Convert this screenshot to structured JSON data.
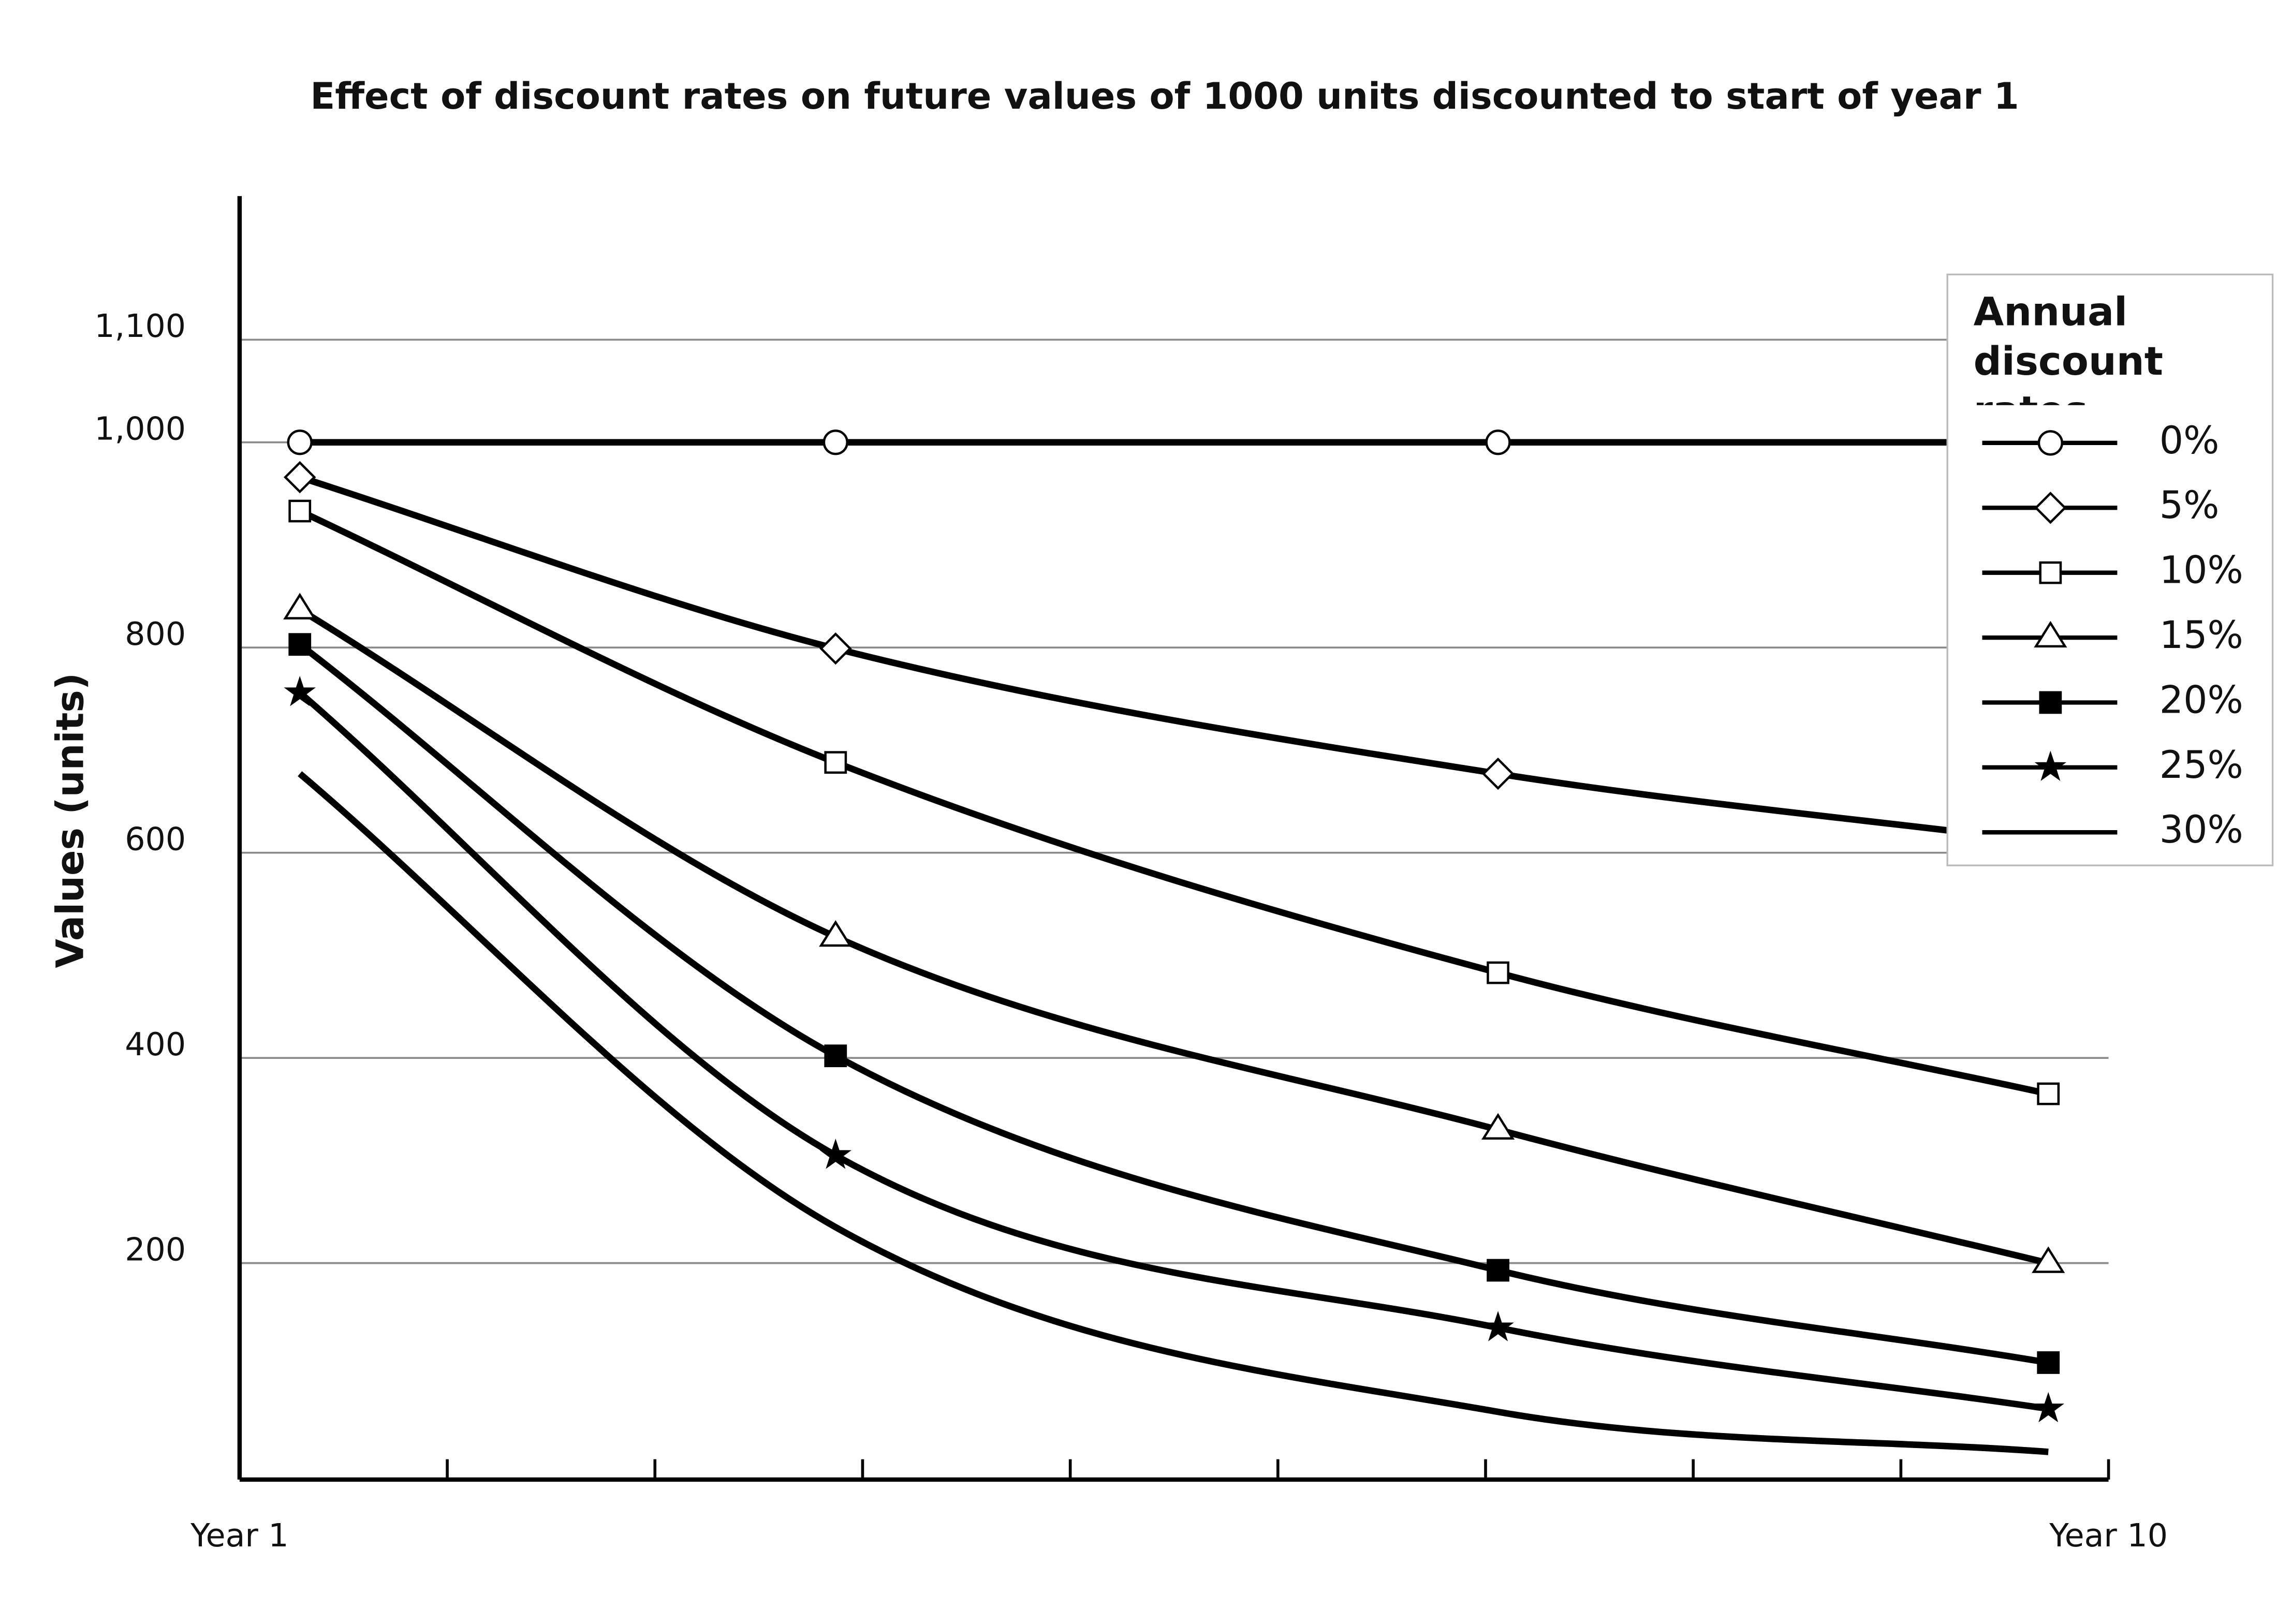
{
  "chart_data": {
    "type": "line",
    "title": "Effect of discount rates on future values of 1000 units discounted to start of year 1",
    "ylabel": "Values (units)",
    "legend_title": "Annual discount rates",
    "legend_position": "upper right",
    "grid": true,
    "x": [
      1.29,
      3.87,
      7.06,
      9.71
    ],
    "xlim": [
      1,
      10
    ],
    "xticks": [
      {
        "value": 1,
        "label": "Year 1"
      },
      {
        "value": 2,
        "label": null
      },
      {
        "value": 3,
        "label": null
      },
      {
        "value": 4,
        "label": null
      },
      {
        "value": 5,
        "label": null
      },
      {
        "value": 6,
        "label": null
      },
      {
        "value": 7,
        "label": null
      },
      {
        "value": 8,
        "label": null
      },
      {
        "value": 9,
        "label": null
      },
      {
        "value": 10,
        "label": "Year 10"
      }
    ],
    "ylim": [
      -11,
      1240
    ],
    "yticks": [
      200,
      400,
      600,
      800,
      {
        "value": 1000,
        "label": "1,000"
      },
      {
        "value": 1100,
        "label": "1,100"
      }
    ],
    "series": [
      {
        "name": "0%",
        "color": "#000000",
        "marker": "circle",
        "values": [
          1000,
          1000,
          1000,
          1000
        ]
      },
      {
        "name": "5%",
        "color": "#000000",
        "marker": "diamond",
        "values": [
          966,
          799,
          677,
          610
        ]
      },
      {
        "name": "10%",
        "color": "#000000",
        "marker": "square",
        "values": [
          933,
          688,
          483,
          365
        ]
      },
      {
        "name": "15%",
        "color": "#000000",
        "marker": "triangle",
        "values": [
          837,
          518,
          330,
          200
        ]
      },
      {
        "name": "20%",
        "color": "#000000",
        "marker": "filled-square",
        "values": [
          803,
          402,
          193,
          103
        ]
      },
      {
        "name": "25%",
        "color": "#000000",
        "marker": "star",
        "values": [
          756,
          305,
          137,
          58
        ]
      },
      {
        "name": "30%",
        "color": "#000000",
        "marker": null,
        "values": [
          677,
          235,
          55,
          16
        ]
      }
    ]
  }
}
